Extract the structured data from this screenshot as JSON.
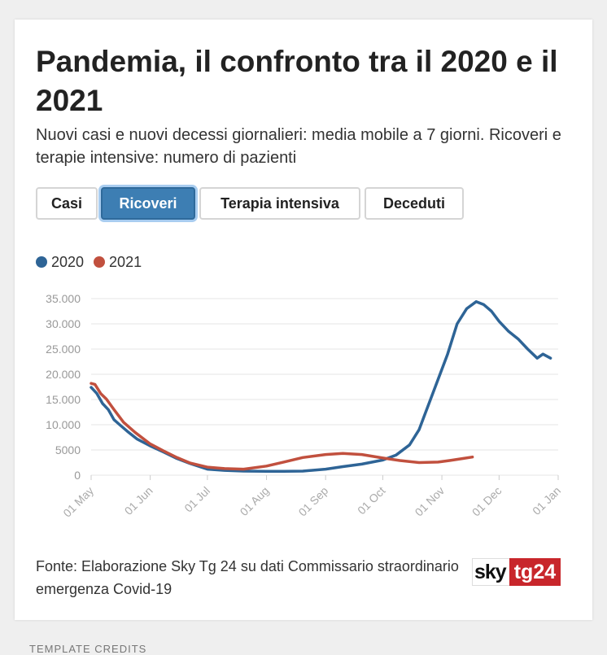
{
  "header": {
    "title": "Pandemia, il confronto tra il 2020 e il 2021",
    "subtitle": "Nuovi casi e nuovi decessi giornalieri: media mobile a 7 giorni. Ricoveri e terapie intensive: numero di pazienti"
  },
  "tabs": [
    {
      "label": "Casi",
      "active": false
    },
    {
      "label": "Ricoveri",
      "active": true
    },
    {
      "label": "Terapia intensiva",
      "active": false
    },
    {
      "label": "Deceduti",
      "active": false
    }
  ],
  "colors": {
    "series_2020": "#2e6496",
    "series_2021": "#c1503e",
    "active_tab": "#3d7eb3"
  },
  "chart_data": {
    "type": "line",
    "title": "",
    "xlabel": "",
    "ylabel": "",
    "x_domain": [
      "2020-05-01",
      "2021-01-01"
    ],
    "ylim": [
      0,
      35000
    ],
    "y_ticks": [
      0,
      5000,
      10000,
      15000,
      20000,
      25000,
      30000,
      35000
    ],
    "y_tick_labels": [
      "0",
      "5000",
      "10.000",
      "15.000",
      "20.000",
      "25.000",
      "30.000",
      "35.000"
    ],
    "x_ticks": [
      "2020-05-01",
      "2020-06-01",
      "2020-07-01",
      "2020-08-01",
      "2020-09-01",
      "2020-10-01",
      "2020-11-01",
      "2020-12-01",
      "2021-01-01"
    ],
    "x_tick_labels": [
      "01 May",
      "01 Jun",
      "01 Jul",
      "01 Aug",
      "01 Sep",
      "01 Oct",
      "01 Nov",
      "01 Dec",
      "01 Jan"
    ],
    "grid": "horizontal",
    "legend_position": "top-left",
    "series": [
      {
        "name": "2020",
        "color": "#2e6496",
        "points": [
          [
            "2020-05-01",
            17400
          ],
          [
            "2020-05-04",
            16200
          ],
          [
            "2020-05-07",
            14200
          ],
          [
            "2020-05-10",
            13000
          ],
          [
            "2020-05-13",
            11000
          ],
          [
            "2020-05-16",
            10000
          ],
          [
            "2020-05-20",
            8700
          ],
          [
            "2020-05-25",
            7200
          ],
          [
            "2020-06-01",
            5800
          ],
          [
            "2020-06-08",
            4600
          ],
          [
            "2020-06-15",
            3300
          ],
          [
            "2020-06-22",
            2300
          ],
          [
            "2020-07-01",
            1200
          ],
          [
            "2020-07-10",
            950
          ],
          [
            "2020-07-20",
            800
          ],
          [
            "2020-08-01",
            750
          ],
          [
            "2020-08-10",
            750
          ],
          [
            "2020-08-20",
            800
          ],
          [
            "2020-09-01",
            1200
          ],
          [
            "2020-09-10",
            1700
          ],
          [
            "2020-09-20",
            2200
          ],
          [
            "2020-10-01",
            3000
          ],
          [
            "2020-10-08",
            4000
          ],
          [
            "2020-10-15",
            6000
          ],
          [
            "2020-10-20",
            9000
          ],
          [
            "2020-10-25",
            14000
          ],
          [
            "2020-10-30",
            19000
          ],
          [
            "2020-11-04",
            24000
          ],
          [
            "2020-11-09",
            30000
          ],
          [
            "2020-11-14",
            33000
          ],
          [
            "2020-11-19",
            34400
          ],
          [
            "2020-11-23",
            33800
          ],
          [
            "2020-11-27",
            32500
          ],
          [
            "2020-12-01",
            30500
          ],
          [
            "2020-12-06",
            28500
          ],
          [
            "2020-12-11",
            27000
          ],
          [
            "2020-12-16",
            25000
          ],
          [
            "2020-12-21",
            23200
          ],
          [
            "2020-12-24",
            24000
          ],
          [
            "2020-12-28",
            23200
          ]
        ]
      },
      {
        "name": "2021",
        "color": "#c1503e",
        "points": [
          [
            "2020-05-01",
            18200
          ],
          [
            "2020-05-03",
            18000
          ],
          [
            "2020-05-06",
            16200
          ],
          [
            "2020-05-09",
            15100
          ],
          [
            "2020-05-13",
            13000
          ],
          [
            "2020-05-18",
            10500
          ],
          [
            "2020-05-24",
            8500
          ],
          [
            "2020-06-01",
            6200
          ],
          [
            "2020-06-08",
            4800
          ],
          [
            "2020-06-15",
            3500
          ],
          [
            "2020-06-22",
            2400
          ],
          [
            "2020-07-01",
            1600
          ],
          [
            "2020-07-10",
            1300
          ],
          [
            "2020-07-20",
            1200
          ],
          [
            "2020-08-01",
            1800
          ],
          [
            "2020-08-10",
            2600
          ],
          [
            "2020-08-20",
            3500
          ],
          [
            "2020-09-01",
            4100
          ],
          [
            "2020-09-10",
            4300
          ],
          [
            "2020-09-20",
            4100
          ],
          [
            "2020-10-01",
            3400
          ],
          [
            "2020-10-10",
            2900
          ],
          [
            "2020-10-20",
            2500
          ],
          [
            "2020-10-30",
            2600
          ],
          [
            "2020-11-05",
            2900
          ],
          [
            "2020-11-12",
            3300
          ],
          [
            "2020-11-17",
            3600
          ]
        ]
      }
    ]
  },
  "footer": {
    "source": "Fonte: Elaborazione Sky Tg 24 su dati Commissario straordinario emergenza Covid-19",
    "logo_sky": "sky",
    "logo_tg": "tg24"
  },
  "credits": "TEMPLATE CREDITS"
}
